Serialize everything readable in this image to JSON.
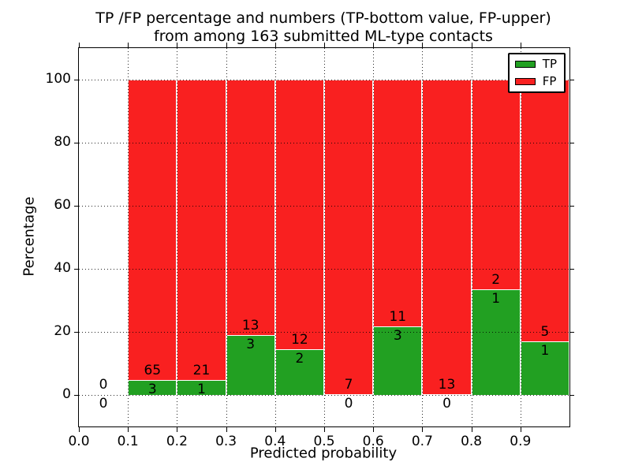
{
  "figure": {
    "title_line1": "TP /FP percentage and numbers (TP-bottom value, FP-upper)",
    "title_line2": "from among 163 submitted ML-type contacts"
  },
  "chart_data": {
    "type": "bar",
    "stacked": true,
    "title": "TP /FP percentage and numbers (TP-bottom value, FP-upper) from among 163 submitted ML-type contacts",
    "xlabel": "Predicted probability",
    "ylabel": "Percentage",
    "xlim": [
      0.0,
      1.0
    ],
    "ylim": [
      -10,
      110
    ],
    "grid": true,
    "legend_position": "upper right",
    "yticks": [
      0,
      20,
      40,
      60,
      80,
      100
    ],
    "xticks": [
      {
        "value": 0.0,
        "label": "0.0"
      },
      {
        "value": 0.1,
        "label": "0.1"
      },
      {
        "value": 0.2,
        "label": "0.2"
      },
      {
        "value": 0.3,
        "label": "0.3"
      },
      {
        "value": 0.4,
        "label": "0.4"
      },
      {
        "value": 0.5,
        "label": "0.5"
      },
      {
        "value": 0.6,
        "label": "0.6"
      },
      {
        "value": 0.7,
        "label": "0.7"
      },
      {
        "value": 0.8,
        "label": "0.8"
      },
      {
        "value": 0.9,
        "label": "0.9"
      }
    ],
    "series": [
      {
        "name": "TP",
        "color": "#22a022"
      },
      {
        "name": "FP",
        "color": "#f92020"
      }
    ],
    "legend": {
      "entries": [
        {
          "label": "TP",
          "color": "#22a022"
        },
        {
          "label": "FP",
          "color": "#f92020"
        }
      ]
    },
    "bins": [
      {
        "x0": 0.0,
        "x1": 0.1,
        "tp_count": 0,
        "fp_count": 0,
        "tp_pct": 0,
        "fp_pct": 0,
        "has_bar": false
      },
      {
        "x0": 0.1,
        "x1": 0.2,
        "tp_count": 3,
        "fp_count": 65,
        "tp_pct": 4.41,
        "fp_pct": 95.59,
        "has_bar": true
      },
      {
        "x0": 0.2,
        "x1": 0.3,
        "tp_count": 1,
        "fp_count": 21,
        "tp_pct": 4.55,
        "fp_pct": 95.45,
        "has_bar": true
      },
      {
        "x0": 0.3,
        "x1": 0.4,
        "tp_count": 3,
        "fp_count": 13,
        "tp_pct": 18.75,
        "fp_pct": 81.25,
        "has_bar": true
      },
      {
        "x0": 0.4,
        "x1": 0.5,
        "tp_count": 2,
        "fp_count": 12,
        "tp_pct": 14.29,
        "fp_pct": 85.71,
        "has_bar": true
      },
      {
        "x0": 0.5,
        "x1": 0.6,
        "tp_count": 0,
        "fp_count": 7,
        "tp_pct": 0,
        "fp_pct": 100,
        "has_bar": true
      },
      {
        "x0": 0.6,
        "x1": 0.7,
        "tp_count": 3,
        "fp_count": 11,
        "tp_pct": 21.43,
        "fp_pct": 78.57,
        "has_bar": true
      },
      {
        "x0": 0.7,
        "x1": 0.8,
        "tp_count": 0,
        "fp_count": 13,
        "tp_pct": 0,
        "fp_pct": 100,
        "has_bar": true
      },
      {
        "x0": 0.8,
        "x1": 0.9,
        "tp_count": 1,
        "fp_count": 2,
        "tp_pct": 33.33,
        "fp_pct": 66.67,
        "has_bar": true
      },
      {
        "x0": 0.9,
        "x1": 1.0,
        "tp_count": 1,
        "fp_count": 5,
        "tp_pct": 16.67,
        "fp_pct": 83.33,
        "has_bar": true
      }
    ]
  }
}
